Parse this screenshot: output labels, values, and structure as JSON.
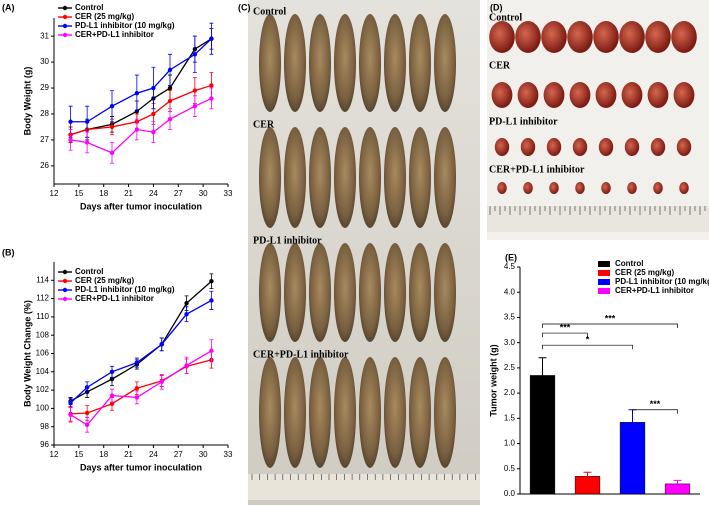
{
  "chart_data": [
    {
      "type": "line",
      "label": "(A)",
      "xlabel": "Days after tumor inoculation",
      "ylabel": "Body Weight (g)",
      "x": [
        14,
        16,
        19,
        22,
        24,
        26,
        29,
        31
      ],
      "series": [
        {
          "name": "Control",
          "color": "#000000",
          "values": [
            27.2,
            27.4,
            27.6,
            28.1,
            28.6,
            29.0,
            30.5,
            30.9
          ],
          "errors": [
            0.3,
            0.4,
            0.3,
            0.4,
            0.4,
            0.5,
            0.5,
            0.4
          ]
        },
        {
          "name": "CER (25 mg/kg)",
          "color": "#ff0000",
          "values": [
            27.2,
            27.4,
            27.5,
            27.7,
            28.0,
            28.5,
            28.9,
            29.1
          ],
          "errors": [
            0.3,
            0.3,
            0.3,
            0.3,
            0.4,
            0.4,
            0.5,
            0.5
          ]
        },
        {
          "name": "PD-L1 inhibitor (10 mg/kg)",
          "color": "#0000ff",
          "values": [
            27.7,
            27.7,
            28.3,
            28.8,
            29.0,
            29.7,
            30.3,
            30.9
          ],
          "errors": [
            0.6,
            0.6,
            0.6,
            0.7,
            0.8,
            0.6,
            0.7,
            0.6
          ]
        },
        {
          "name": "CER+PD-L1 inhibitor",
          "color": "#ff00ff",
          "values": [
            27.0,
            26.9,
            26.5,
            27.4,
            27.3,
            27.8,
            28.3,
            28.6
          ],
          "errors": [
            0.4,
            0.4,
            0.4,
            0.4,
            0.4,
            0.4,
            0.4,
            0.4
          ]
        }
      ],
      "xlim": [
        12,
        33
      ],
      "xticks": [
        12,
        15,
        18,
        21,
        24,
        27,
        30,
        33
      ],
      "ylim": [
        25.3,
        31.7
      ],
      "yticks": [
        26,
        27,
        28,
        29,
        30,
        31
      ]
    },
    {
      "type": "line",
      "label": "(B)",
      "xlabel": "Days after tumor inoculation",
      "ylabel": "Body Weight Change (%)",
      "x": [
        14,
        16,
        19,
        22,
        25,
        28,
        31
      ],
      "series": [
        {
          "name": "Control",
          "color": "#000000",
          "values": [
            100.8,
            101.8,
            103.2,
            104.8,
            107.0,
            111.5,
            113.9
          ],
          "errors": [
            0.4,
            0.6,
            0.7,
            0.5,
            0.7,
            0.8,
            0.8
          ]
        },
        {
          "name": "CER (25 mg/kg)",
          "color": "#ff0000",
          "values": [
            99.4,
            99.5,
            100.5,
            102.2,
            103.0,
            104.6,
            105.3
          ],
          "errors": [
            0.8,
            0.8,
            0.7,
            0.7,
            0.6,
            0.8,
            0.9
          ]
        },
        {
          "name": "PD-L1 inhibitor (10 mg/kg)",
          "color": "#0000ff",
          "values": [
            100.6,
            102.3,
            104.0,
            105.0,
            107.0,
            110.3,
            111.8
          ],
          "errors": [
            0.5,
            0.6,
            0.6,
            0.5,
            0.7,
            0.8,
            1.0
          ]
        },
        {
          "name": "CER+PD-L1 inhibitor",
          "color": "#ff00ff",
          "values": [
            99.3,
            98.2,
            101.4,
            101.2,
            102.9,
            104.7,
            106.3
          ],
          "errors": [
            0.8,
            0.8,
            0.7,
            0.7,
            0.8,
            0.9,
            1.2
          ]
        }
      ],
      "xlim": [
        12,
        33
      ],
      "xticks": [
        12,
        15,
        18,
        21,
        24,
        27,
        30,
        33
      ],
      "ylim": [
        96,
        116
      ],
      "yticks": [
        96,
        98,
        100,
        102,
        104,
        106,
        108,
        110,
        112,
        114
      ]
    },
    {
      "type": "bar",
      "label": "(E)",
      "ylabel": "Tumor weight (g)",
      "categories": [
        null
      ],
      "series": [
        {
          "name": "Control",
          "color": "#000000",
          "values": [
            2.35
          ],
          "errors": [
            0.35
          ]
        },
        {
          "name": "CER (25 mg/kg)",
          "color": "#ff0000",
          "values": [
            0.35
          ],
          "errors": [
            0.08
          ]
        },
        {
          "name": "PD-L1 inhibitor (10 mg/kg)",
          "color": "#0000ff",
          "values": [
            1.42
          ],
          "errors": [
            0.25
          ]
        },
        {
          "name": "CER+PD-L1 inhibitor",
          "color": "#ff00ff",
          "values": [
            0.2
          ],
          "errors": [
            0.07
          ]
        }
      ],
      "ylim": [
        0,
        4.5
      ],
      "yticks": [
        {
          "value": 0,
          "label": "0.0"
        },
        0.5,
        {
          "value": 1,
          "label": "1.0"
        },
        1.5,
        {
          "value": 2,
          "label": "2.0"
        },
        2.5,
        {
          "value": 3,
          "label": "3.0"
        },
        3.5,
        {
          "value": 4,
          "label": "4.0"
        },
        4.5
      ],
      "annotations": [
        {
          "text": "***",
          "between": [
            0,
            1
          ],
          "y": 3.19
        },
        {
          "text": "*",
          "between": [
            0,
            2
          ],
          "y": 2.95
        },
        {
          "text": "***",
          "between": [
            0,
            3
          ],
          "y": 3.37
        },
        {
          "text": "***",
          "between": [
            2,
            3
          ],
          "y": 1.67
        }
      ]
    }
  ],
  "photos": [
    {
      "label": "(C)",
      "rows": [
        "Control",
        "CER",
        "PD-L1 inhibitor",
        "CER+PD-L1 inhibitor"
      ]
    },
    {
      "label": "(D)",
      "rows": [
        "Control",
        "CER",
        "PD-L1 inhibitor",
        "CER+PD-L1 inhibitor"
      ]
    }
  ]
}
